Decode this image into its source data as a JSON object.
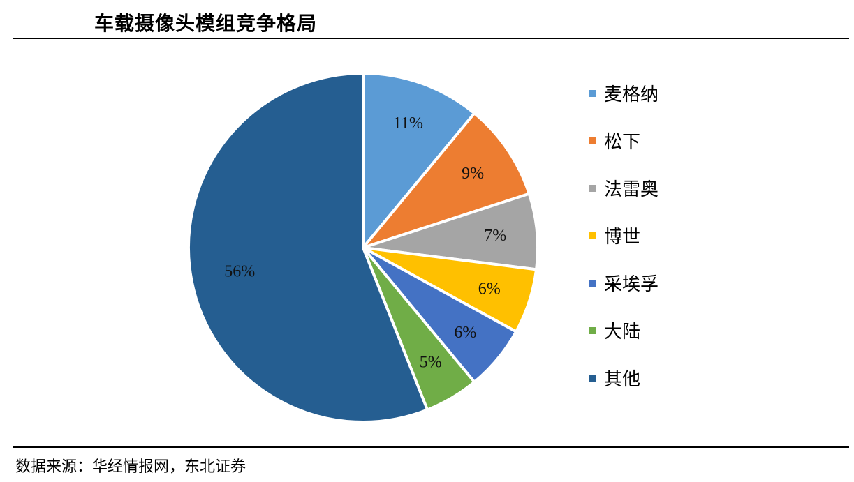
{
  "title": "车载摄像头模组竞争格局",
  "source": "数据来源：华经情报网，东北证券",
  "chart_data": {
    "type": "pie",
    "slices": [
      {
        "name": "麦格纳",
        "value": 11,
        "label": "11%",
        "color": "#5B9BD5"
      },
      {
        "name": "松下",
        "value": 9,
        "label": "9%",
        "color": "#ED7D31"
      },
      {
        "name": "法雷奥",
        "value": 7,
        "label": "7%",
        "color": "#A5A5A5"
      },
      {
        "name": "博世",
        "value": 6,
        "label": "6%",
        "color": "#FFC000"
      },
      {
        "name": "采埃孚",
        "value": 6,
        "label": "6%",
        "color": "#4472C4"
      },
      {
        "name": "大陆",
        "value": 5,
        "label": "5%",
        "color": "#70AD47"
      },
      {
        "name": "其他",
        "value": 56,
        "label": "56%",
        "color": "#255E91"
      }
    ],
    "legend_position": "right",
    "start": "12 o'clock",
    "direction": "clockwise"
  }
}
